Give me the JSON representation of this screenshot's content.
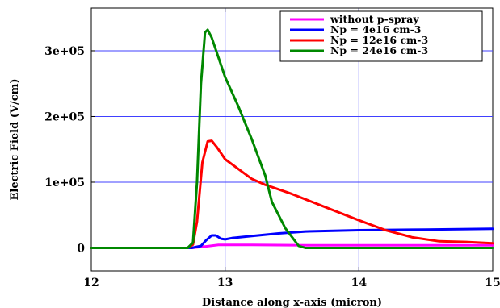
{
  "chart_data": {
    "type": "line",
    "title": "",
    "xlabel": "Distance along x-axis (micron)",
    "ylabel": "Electric Field (V/cm)",
    "xlim": [
      12,
      15
    ],
    "ylim": [
      -35000,
      365000
    ],
    "x_ticks": [
      12,
      13,
      14,
      15
    ],
    "x_tick_labels": [
      "12",
      "13",
      "14",
      "15"
    ],
    "y_ticks": [
      0,
      100000,
      200000,
      300000
    ],
    "y_tick_labels": [
      "0",
      "1e+05",
      "2e+05",
      "3e+05"
    ],
    "grid": true,
    "legend_position": "top-right",
    "series": [
      {
        "name": "without p-spray",
        "color": "#ff00ff",
        "points": [
          [
            12.0,
            0
          ],
          [
            12.75,
            0
          ],
          [
            12.85,
            2000
          ],
          [
            12.95,
            4500
          ],
          [
            13.2,
            4500
          ],
          [
            13.6,
            4000
          ],
          [
            14.0,
            4000
          ],
          [
            15.0,
            4000
          ]
        ]
      },
      {
        "name": "Np = 4e16 cm-3",
        "color": "#0000ff",
        "points": [
          [
            12.0,
            0
          ],
          [
            12.75,
            0
          ],
          [
            12.82,
            3000
          ],
          [
            12.86,
            12000
          ],
          [
            12.9,
            19000
          ],
          [
            12.93,
            19000
          ],
          [
            12.97,
            14000
          ],
          [
            13.0,
            13000
          ],
          [
            13.05,
            15000
          ],
          [
            13.2,
            18000
          ],
          [
            13.4,
            22000
          ],
          [
            13.6,
            25000
          ],
          [
            14.0,
            27000
          ],
          [
            14.5,
            28000
          ],
          [
            15.0,
            29000
          ]
        ]
      },
      {
        "name": "Np = 12e16 cm-3",
        "color": "#ff0000",
        "points": [
          [
            12.0,
            0
          ],
          [
            12.72,
            0
          ],
          [
            12.76,
            5000
          ],
          [
            12.79,
            40000
          ],
          [
            12.83,
            130000
          ],
          [
            12.87,
            162000
          ],
          [
            12.9,
            163000
          ],
          [
            12.94,
            153000
          ],
          [
            13.0,
            135000
          ],
          [
            13.1,
            120000
          ],
          [
            13.2,
            105000
          ],
          [
            13.3,
            96000
          ],
          [
            13.5,
            82000
          ],
          [
            13.7,
            66000
          ],
          [
            14.0,
            42000
          ],
          [
            14.2,
            27000
          ],
          [
            14.4,
            16000
          ],
          [
            14.6,
            10000
          ],
          [
            14.8,
            9000
          ],
          [
            15.0,
            7000
          ]
        ]
      },
      {
        "name": "Np = 24e16 cm-3",
        "color": "#008800",
        "points": [
          [
            12.0,
            0
          ],
          [
            12.72,
            0
          ],
          [
            12.76,
            8000
          ],
          [
            12.79,
            100000
          ],
          [
            12.82,
            250000
          ],
          [
            12.85,
            328000
          ],
          [
            12.87,
            332000
          ],
          [
            12.9,
            320000
          ],
          [
            12.95,
            290000
          ],
          [
            13.0,
            260000
          ],
          [
            13.1,
            215000
          ],
          [
            13.2,
            165000
          ],
          [
            13.3,
            110000
          ],
          [
            13.35,
            70000
          ],
          [
            13.45,
            30000
          ],
          [
            13.55,
            3000
          ],
          [
            13.6,
            0
          ],
          [
            15.0,
            0
          ]
        ]
      }
    ]
  }
}
